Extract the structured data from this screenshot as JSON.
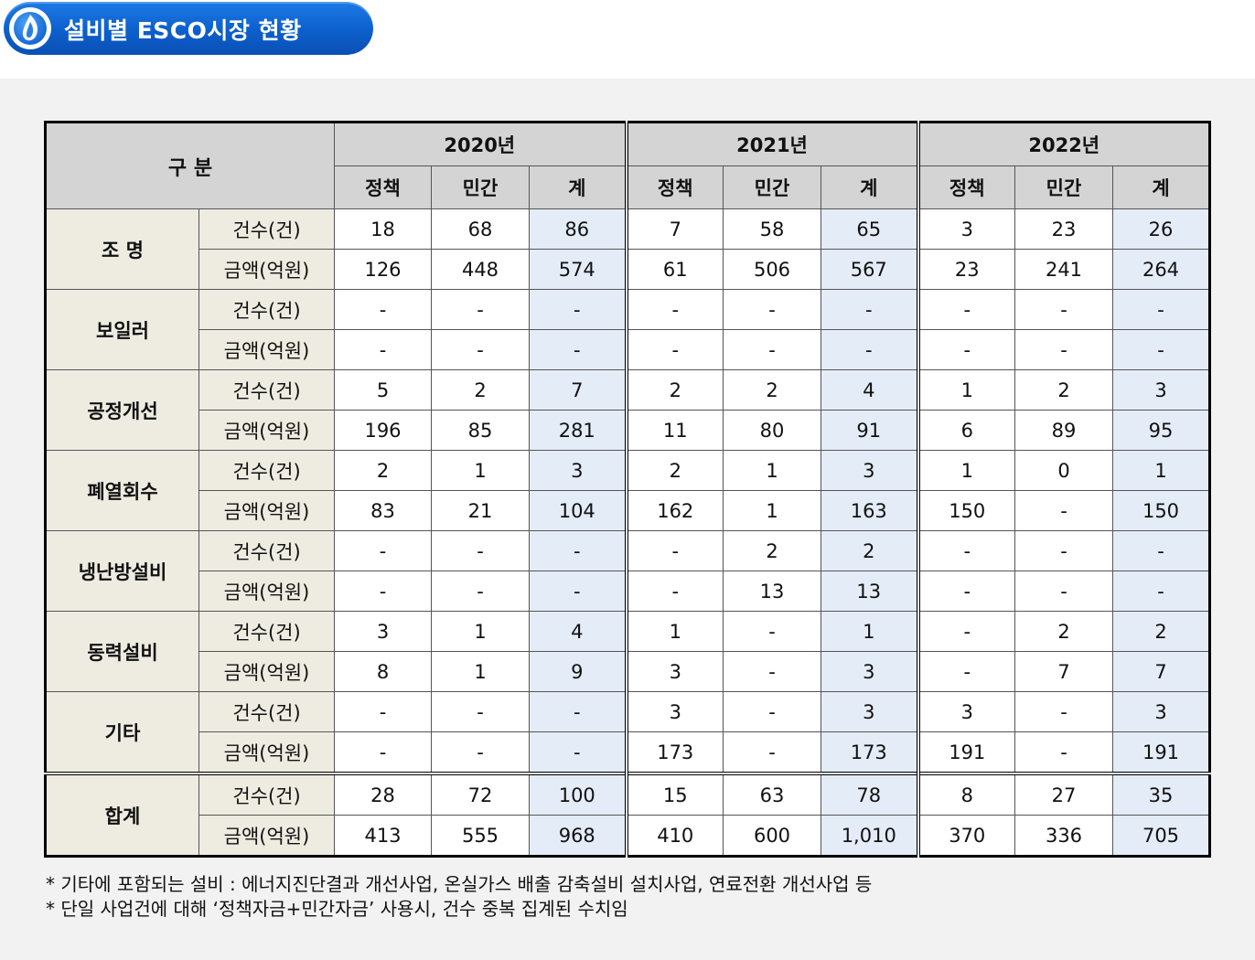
{
  "title": "설비별 ESCO시장 현황",
  "header": {
    "category_label": "구 분",
    "years": [
      "2020년",
      "2021년",
      "2022년"
    ],
    "sub_labels": [
      "정책",
      "민간",
      "계"
    ]
  },
  "metrics": {
    "count": "건수(건)",
    "amount": "금액(억원)"
  },
  "rows": [
    {
      "name": "조 명",
      "count": [
        "18",
        "68",
        "86",
        "7",
        "58",
        "65",
        "3",
        "23",
        "26"
      ],
      "amount": [
        "126",
        "448",
        "574",
        "61",
        "506",
        "567",
        "23",
        "241",
        "264"
      ]
    },
    {
      "name": "보일러",
      "count": [
        "-",
        "-",
        "-",
        "-",
        "-",
        "-",
        "-",
        "-",
        "-"
      ],
      "amount": [
        "-",
        "-",
        "-",
        "-",
        "-",
        "-",
        "-",
        "-",
        "-"
      ]
    },
    {
      "name": "공정개선",
      "count": [
        "5",
        "2",
        "7",
        "2",
        "2",
        "4",
        "1",
        "2",
        "3"
      ],
      "amount": [
        "196",
        "85",
        "281",
        "11",
        "80",
        "91",
        "6",
        "89",
        "95"
      ]
    },
    {
      "name": "폐열회수",
      "count": [
        "2",
        "1",
        "3",
        "2",
        "1",
        "3",
        "1",
        "0",
        "1"
      ],
      "amount": [
        "83",
        "21",
        "104",
        "162",
        "1",
        "163",
        "150",
        "-",
        "150"
      ]
    },
    {
      "name": "냉난방설비",
      "count": [
        "-",
        "-",
        "-",
        "-",
        "2",
        "2",
        "-",
        "-",
        "-"
      ],
      "amount": [
        "-",
        "-",
        "-",
        "-",
        "13",
        "13",
        "-",
        "-",
        "-"
      ]
    },
    {
      "name": "동력설비",
      "count": [
        "3",
        "1",
        "4",
        "1",
        "-",
        "1",
        "-",
        "2",
        "2"
      ],
      "amount": [
        "8",
        "1",
        "9",
        "3",
        "-",
        "3",
        "-",
        "7",
        "7"
      ]
    },
    {
      "name": "기타",
      "count": [
        "-",
        "-",
        "-",
        "3",
        "-",
        "3",
        "3",
        "-",
        "3"
      ],
      "amount": [
        "-",
        "-",
        "-",
        "173",
        "-",
        "173",
        "191",
        "-",
        "191"
      ]
    },
    {
      "name": "합계",
      "count": [
        "28",
        "72",
        "100",
        "15",
        "63",
        "78",
        "8",
        "27",
        "35"
      ],
      "amount": [
        "413",
        "555",
        "968",
        "410",
        "600",
        "1,010",
        "370",
        "336",
        "705"
      ]
    }
  ],
  "notes": [
    "* 기타에 포함되는 설비 : 에너지진단결과 개선사업, 온실가스 배출 감축설비 설치사업, 연료전환 개선사업 등",
    "* 단일 사업건에 대해 ‘정책자금+민간자금’ 사용시, 건수 중복 집계된 수치임"
  ]
}
